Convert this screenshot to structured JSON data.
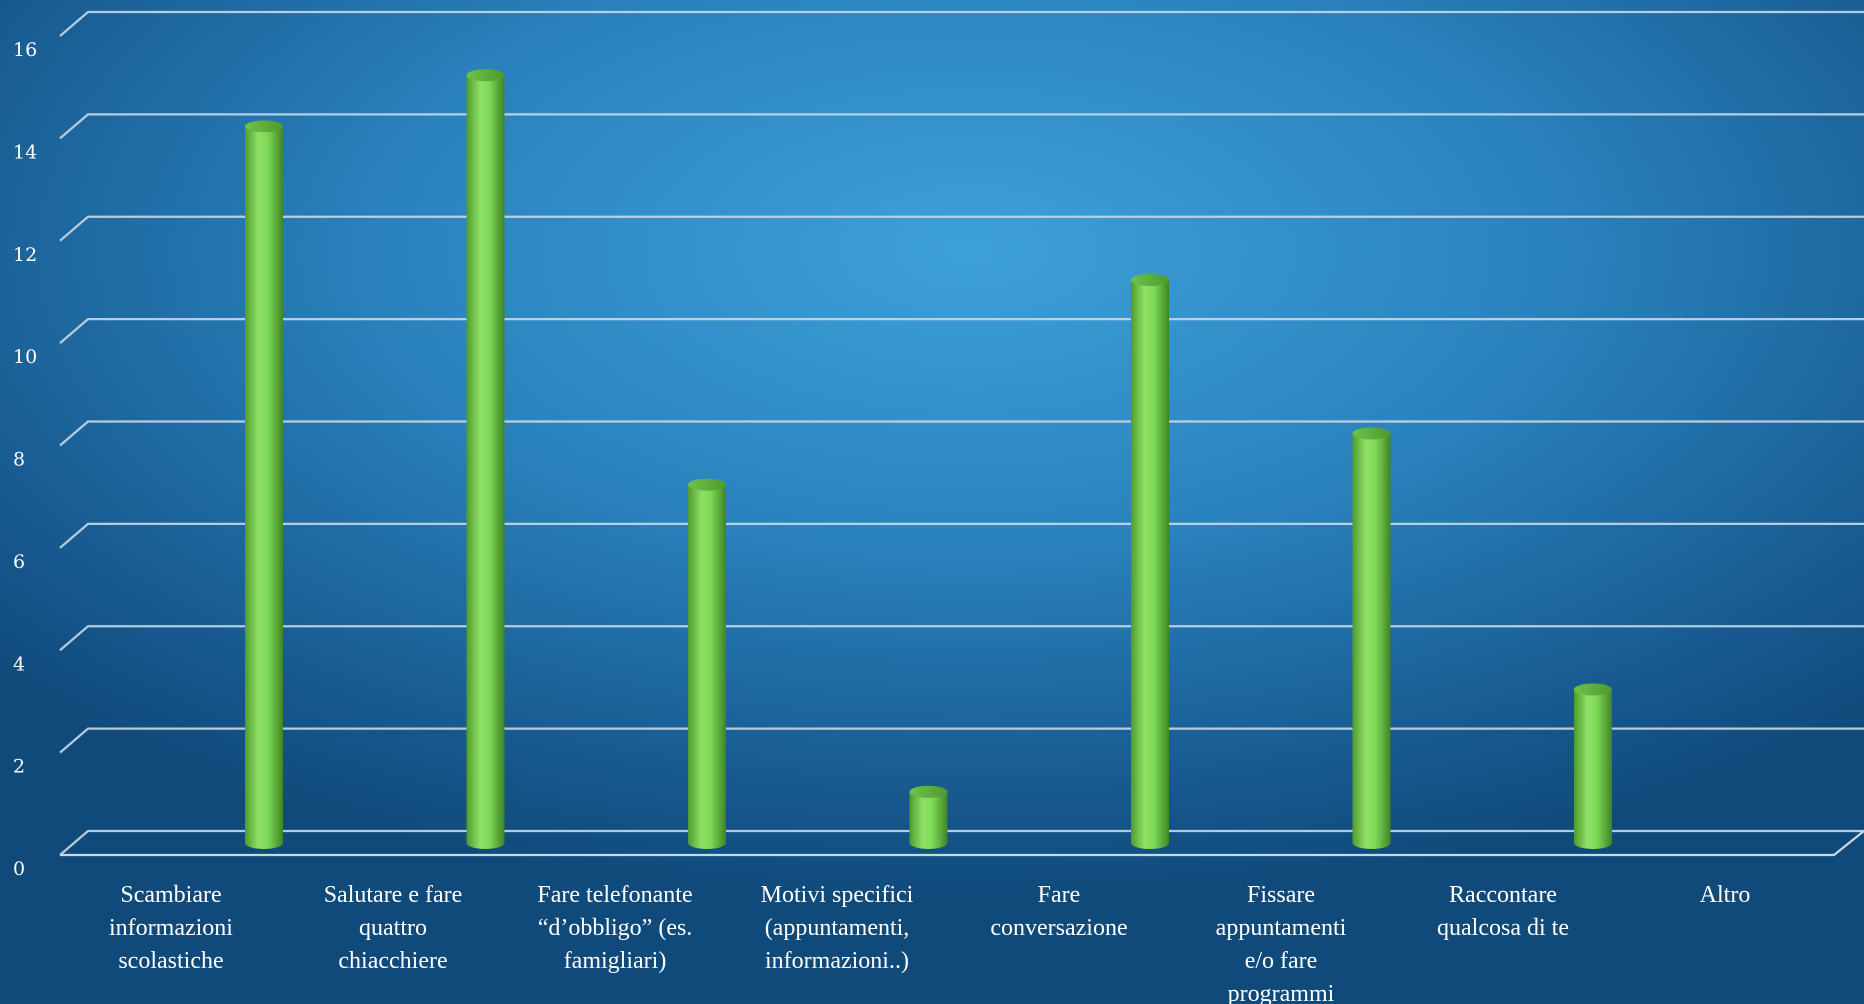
{
  "chart_data": {
    "type": "bar",
    "categories": [
      [
        "Scambiare",
        "informazioni",
        "scolastiche"
      ],
      [
        "Salutare e fare",
        "quattro",
        "chiacchiere"
      ],
      [
        "Fare telefonante",
        "“d’obbligo” (es.",
        "famigliari)"
      ],
      [
        "Motivi specifici",
        "(appuntamenti,",
        "informazioni..)"
      ],
      [
        "Fare",
        "conversazione"
      ],
      [
        "Fissare",
        "appuntamenti",
        "e/o fare",
        "programmi"
      ],
      [
        "Raccontare",
        "qualcosa di te"
      ],
      [
        "Altro"
      ]
    ],
    "values": [
      14,
      15,
      7,
      1,
      11,
      8,
      3,
      0
    ],
    "yticks": [
      0,
      2,
      4,
      6,
      8,
      10,
      12,
      14,
      16
    ],
    "ylim": [
      0,
      16
    ],
    "grid": true,
    "bar_color": "#7ed957",
    "grid_color": "#c8d8e4"
  }
}
